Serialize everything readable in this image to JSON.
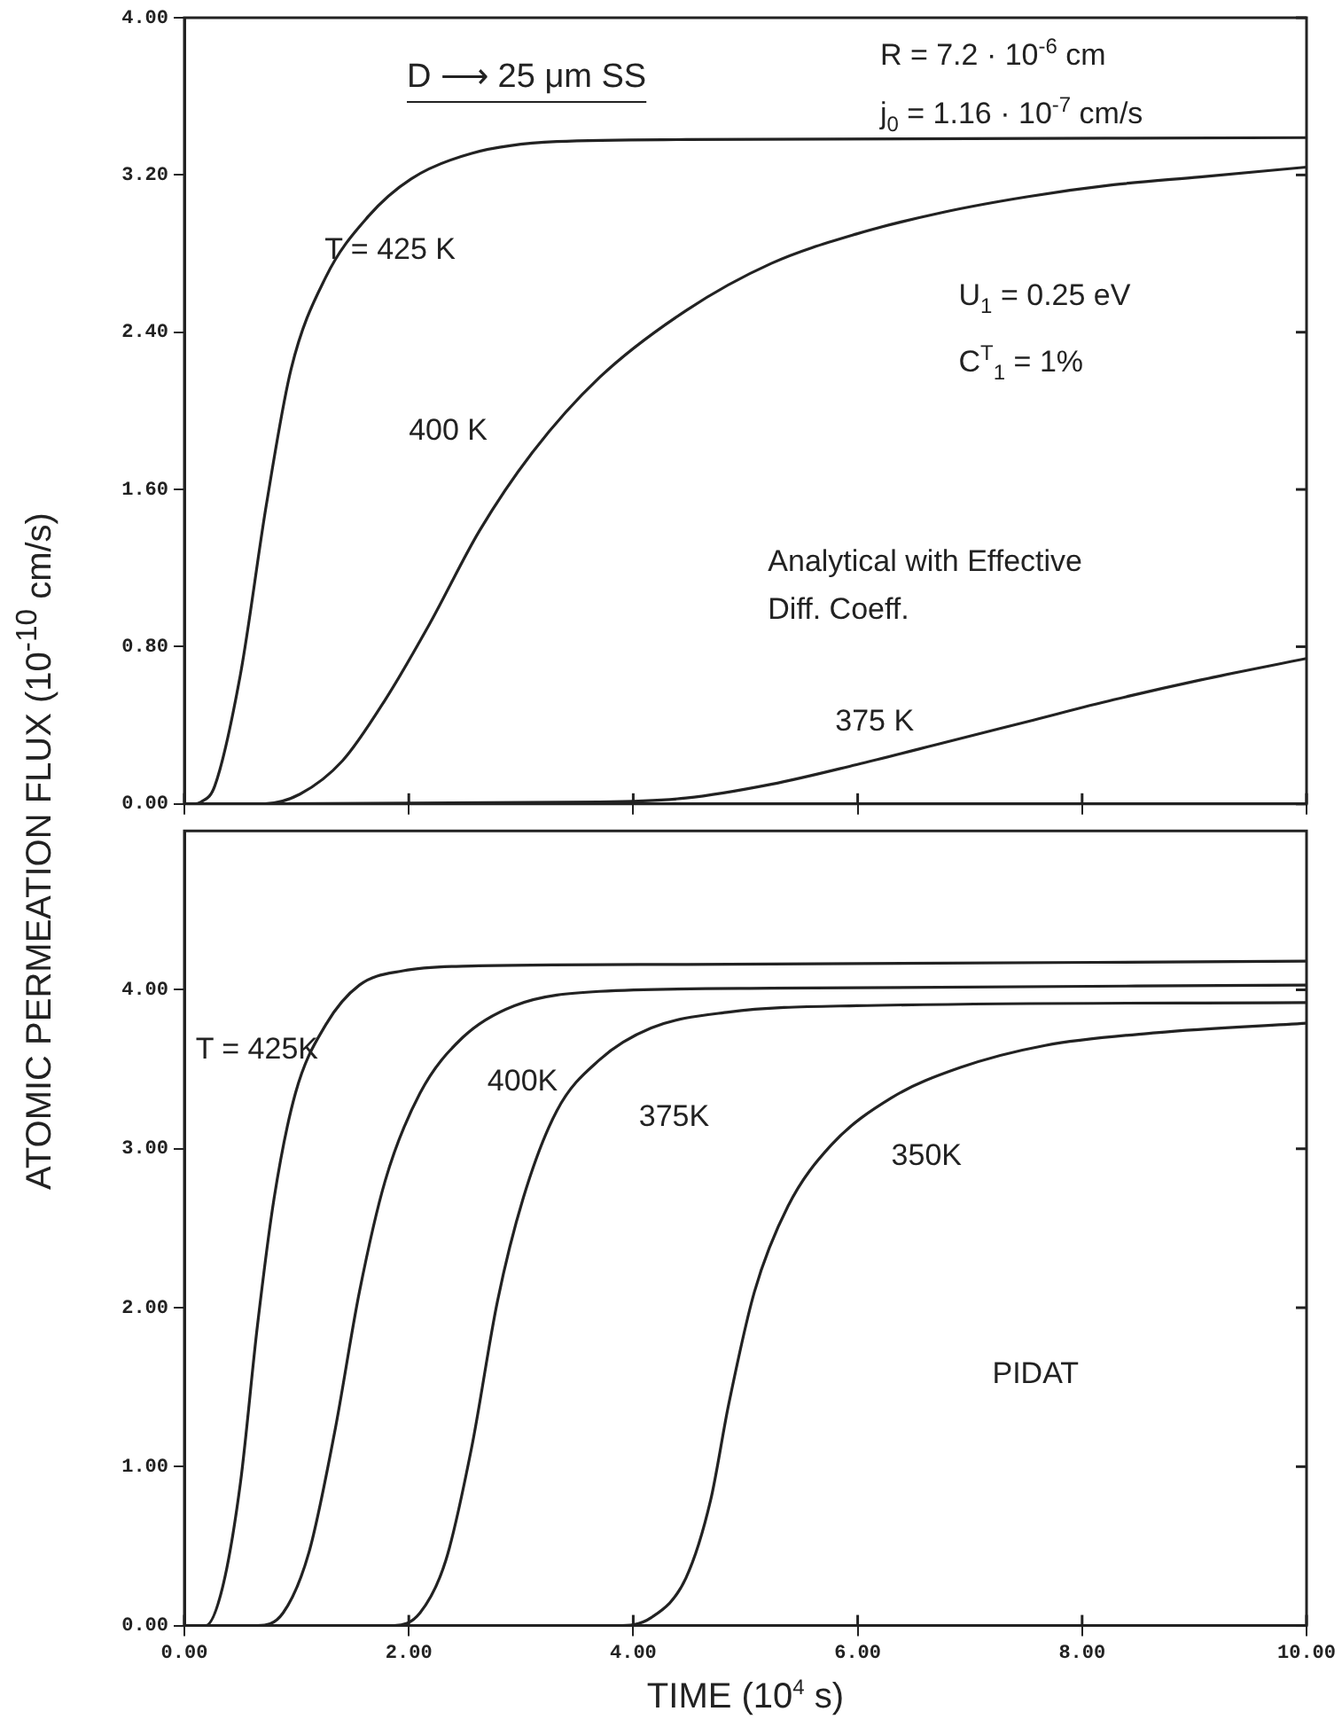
{
  "chart_data": [
    {
      "type": "line",
      "ylabel": "ATOMIC PERMEATION FLUX (10$^{-10}$ cm/s)",
      "tick_labels": "y",
      "marker": "none",
      "line_style": "solid",
      "xlim": [
        0,
        10
      ],
      "xticks": [
        {
          "value": 0,
          "label": null
        },
        {
          "value": 2,
          "label": null
        },
        {
          "value": 4,
          "label": null
        },
        {
          "value": 6,
          "label": null
        },
        {
          "value": 8,
          "label": null
        },
        {
          "value": 10,
          "label": null
        }
      ],
      "ylim": [
        0,
        4
      ],
      "yticks": [
        {
          "value": 0,
          "label": "0.00"
        },
        {
          "value": 0.8,
          "label": "0.80"
        },
        {
          "value": 1.6,
          "label": "1.60"
        },
        {
          "value": 2.4,
          "label": "2.40"
        },
        {
          "value": 3.2,
          "label": "3.20"
        },
        {
          "value": 4,
          "label": "4.00"
        }
      ],
      "series": [
        {
          "color": "#222222",
          "x": [
            0,
            0.08,
            0.15,
            0.27,
            0.5,
            0.73,
            0.95,
            1.26,
            1.64,
            2.02,
            2.56,
            3.32,
            4.47,
            10
          ],
          "values": [
            0,
            0,
            0.01,
            0.09,
            0.66,
            1.52,
            2.21,
            2.68,
            2.99,
            3.18,
            3.31,
            3.37,
            3.38,
            3.39
          ]
        },
        {
          "color": "#222222",
          "x": [
            0,
            0.7,
            1.03,
            1.41,
            1.79,
            2.18,
            2.63,
            3.09,
            3.7,
            4.47,
            5.23,
            5.99,
            6.76,
            7.52,
            8.28,
            9.05,
            10
          ],
          "values": [
            0,
            0,
            0.05,
            0.22,
            0.53,
            0.91,
            1.39,
            1.78,
            2.17,
            2.51,
            2.75,
            2.9,
            3.01,
            3.09,
            3.15,
            3.19,
            3.24
          ]
        },
        {
          "color": "#222222",
          "x": [
            0,
            3.7,
            4.47,
            5.23,
            5.99,
            6.76,
            7.52,
            8.28,
            9.05,
            10
          ],
          "values": [
            0,
            0.01,
            0.03,
            0.1,
            0.2,
            0.31,
            0.42,
            0.53,
            0.63,
            0.74
          ]
        }
      ],
      "annotations": [
        "D ⟶ 25 μm SS",
        "R = 7.2 · 10$^{-6}$ cm",
        "j$_{0}$ = 1.16 · 10$^{-7}$ cm/s",
        "U$_{1}$ = 0.25 eV",
        "C$^{T}$$_{1}$ = 1%",
        "Analytical with Effective Diff. Coeff.",
        "T = 425 K",
        "400 K",
        "375 K"
      ]
    },
    {
      "type": "line",
      "xlabel": "TIME (10$^{4}$ s)",
      "marker": "none",
      "line_style": "solid",
      "xlim": [
        0,
        10
      ],
      "xticks": [
        {
          "value": 0,
          "label": "0.00"
        },
        {
          "value": 2,
          "label": "2.00"
        },
        {
          "value": 4,
          "label": "4.00"
        },
        {
          "value": 6,
          "label": "6.00"
        },
        {
          "value": 8,
          "label": "8.00"
        },
        {
          "value": 10,
          "label": "10.00"
        }
      ],
      "ylim": [
        0,
        5
      ],
      "yticks": [
        {
          "value": 0,
          "label": "0.00"
        },
        {
          "value": 1,
          "label": "1.00"
        },
        {
          "value": 2,
          "label": "2.00"
        },
        {
          "value": 3,
          "label": "3.00"
        },
        {
          "value": 4,
          "label": "4.00"
        }
      ],
      "series": [
        {
          "color": "#222222",
          "x": [
            0,
            0.19,
            0.34,
            0.5,
            0.65,
            0.8,
            0.99,
            1.26,
            1.56,
            1.95,
            2.56,
            4.47,
            10
          ],
          "values": [
            0,
            0,
            0.24,
            0.9,
            1.88,
            2.69,
            3.35,
            3.78,
            4.03,
            4.12,
            4.15,
            4.16,
            4.18
          ]
        },
        {
          "color": "#222222",
          "x": [
            0,
            0.65,
            0.88,
            1.11,
            1.34,
            1.56,
            1.79,
            2.1,
            2.48,
            2.94,
            3.7,
            5.23,
            10
          ],
          "values": [
            0,
            0,
            0.08,
            0.46,
            1.22,
            2.1,
            2.8,
            3.35,
            3.7,
            3.9,
            3.99,
            4.01,
            4.03
          ]
        },
        {
          "color": "#222222",
          "x": [
            0,
            1.87,
            2.1,
            2.33,
            2.56,
            2.79,
            3.02,
            3.32,
            3.7,
            4.16,
            4.85,
            5.99,
            10
          ],
          "values": [
            0,
            0,
            0.08,
            0.41,
            1.12,
            2.04,
            2.69,
            3.24,
            3.56,
            3.76,
            3.86,
            3.9,
            3.92
          ]
        },
        {
          "color": "#222222",
          "x": [
            0,
            3.85,
            4.16,
            4.47,
            4.69,
            4.85,
            5.08,
            5.38,
            5.76,
            6.3,
            6.91,
            7.67,
            8.66,
            10
          ],
          "values": [
            0,
            0,
            0.05,
            0.3,
            0.79,
            1.39,
            2.1,
            2.64,
            3.02,
            3.32,
            3.51,
            3.65,
            3.73,
            3.79
          ]
        }
      ],
      "annotations": [
        "PIDAT",
        "T = 425K",
        "400K",
        "375K",
        "350K"
      ]
    }
  ]
}
